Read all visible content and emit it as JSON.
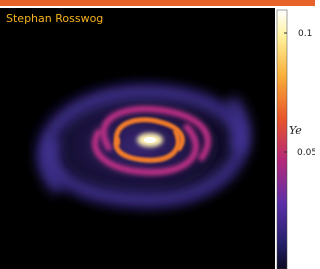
{
  "credit": "Stephan Rosswog",
  "colorbar": {
    "label": "Ye",
    "ticks": [
      0.1,
      0.05
    ]
  }
}
